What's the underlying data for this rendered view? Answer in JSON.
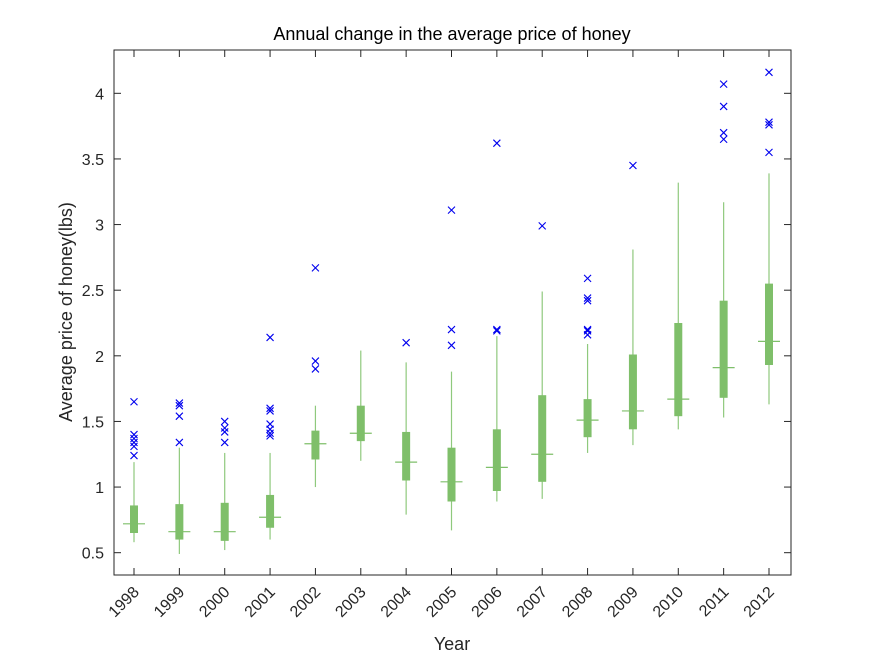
{
  "chart_data": {
    "type": "boxplot",
    "title": "Annual change in the average price of honey",
    "xlabel": "Year",
    "ylabel": "Average price of honey(lbs)",
    "ylim": [
      0.33,
      4.33
    ],
    "yticks": [
      0.5,
      1,
      1.5,
      2,
      2.5,
      3,
      3.5,
      4
    ],
    "ytick_labels": [
      "0.5",
      "1",
      "1.5",
      "2",
      "2.5",
      "3",
      "3.5",
      "4"
    ],
    "grid": false,
    "categories": [
      "1998",
      "1999",
      "2000",
      "2001",
      "2002",
      "2003",
      "2004",
      "2005",
      "2006",
      "2007",
      "2008",
      "2009",
      "2010",
      "2011",
      "2012"
    ],
    "colors": {
      "box": "#7fbf6a",
      "whisker": "#8fc97d",
      "median": "#7fbf6a",
      "outlier": "#0000ee",
      "axis": "#262626"
    },
    "boxes": [
      {
        "year": "1998",
        "q1": 0.65,
        "median": 0.72,
        "q3": 0.86,
        "whisker_low": 0.58,
        "whisker_high": 1.19,
        "outliers": [
          1.24,
          1.31,
          1.34,
          1.37,
          1.4,
          1.65
        ]
      },
      {
        "year": "1999",
        "q1": 0.6,
        "median": 0.66,
        "q3": 0.87,
        "whisker_low": 0.49,
        "whisker_high": 1.3,
        "outliers": [
          1.34,
          1.54,
          1.62,
          1.64
        ]
      },
      {
        "year": "2000",
        "q1": 0.59,
        "median": 0.66,
        "q3": 0.88,
        "whisker_low": 0.52,
        "whisker_high": 1.26,
        "outliers": [
          1.34,
          1.42,
          1.45,
          1.5
        ]
      },
      {
        "year": "2001",
        "q1": 0.69,
        "median": 0.77,
        "q3": 0.94,
        "whisker_low": 0.6,
        "whisker_high": 1.26,
        "outliers": [
          1.39,
          1.41,
          1.44,
          1.48,
          1.58,
          1.6,
          2.14
        ]
      },
      {
        "year": "2002",
        "q1": 1.21,
        "median": 1.33,
        "q3": 1.43,
        "whisker_low": 1.0,
        "whisker_high": 1.62,
        "outliers": [
          1.9,
          1.96,
          2.67
        ]
      },
      {
        "year": "2003",
        "q1": 1.35,
        "median": 1.41,
        "q3": 1.62,
        "whisker_low": 1.2,
        "whisker_high": 2.04,
        "outliers": []
      },
      {
        "year": "2004",
        "q1": 1.05,
        "median": 1.19,
        "q3": 1.42,
        "whisker_low": 0.79,
        "whisker_high": 1.95,
        "outliers": [
          2.1
        ]
      },
      {
        "year": "2005",
        "q1": 0.89,
        "median": 1.04,
        "q3": 1.3,
        "whisker_low": 0.67,
        "whisker_high": 1.88,
        "outliers": [
          2.08,
          2.2,
          3.11
        ]
      },
      {
        "year": "2006",
        "q1": 0.97,
        "median": 1.15,
        "q3": 1.44,
        "whisker_low": 0.89,
        "whisker_high": 2.15,
        "outliers": [
          2.19,
          2.2,
          3.62
        ]
      },
      {
        "year": "2007",
        "q1": 1.04,
        "median": 1.25,
        "q3": 1.7,
        "whisker_low": 0.91,
        "whisker_high": 2.49,
        "outliers": [
          2.99
        ]
      },
      {
        "year": "2008",
        "q1": 1.38,
        "median": 1.51,
        "q3": 1.67,
        "whisker_low": 1.26,
        "whisker_high": 2.09,
        "outliers": [
          2.16,
          2.19,
          2.2,
          2.42,
          2.44,
          2.59
        ]
      },
      {
        "year": "2009",
        "q1": 1.44,
        "median": 1.58,
        "q3": 2.01,
        "whisker_low": 1.32,
        "whisker_high": 2.81,
        "outliers": [
          3.45
        ]
      },
      {
        "year": "2010",
        "q1": 1.54,
        "median": 1.67,
        "q3": 2.25,
        "whisker_low": 1.44,
        "whisker_high": 3.32,
        "outliers": []
      },
      {
        "year": "2011",
        "q1": 1.68,
        "median": 1.91,
        "q3": 2.42,
        "whisker_low": 1.53,
        "whisker_high": 3.17,
        "outliers": [
          3.65,
          3.7,
          3.9,
          4.07
        ]
      },
      {
        "year": "2012",
        "q1": 1.93,
        "median": 2.11,
        "q3": 2.55,
        "whisker_low": 1.63,
        "whisker_high": 3.39,
        "outliers": [
          3.55,
          3.76,
          3.78,
          4.16
        ]
      }
    ]
  }
}
